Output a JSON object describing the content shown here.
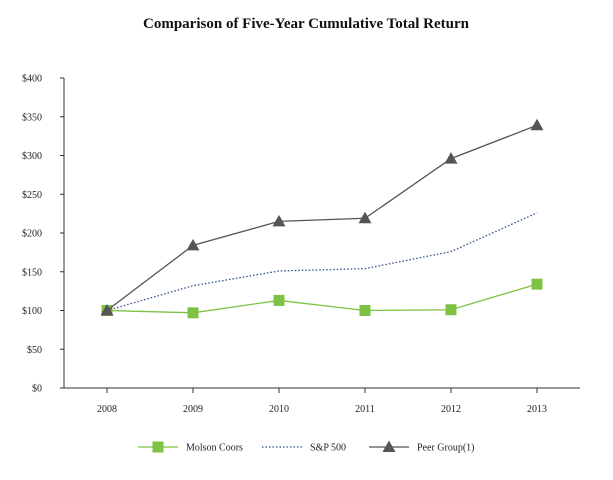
{
  "chart_data": {
    "type": "line",
    "title": "Comparison of Five-Year Cumulative Total Return",
    "categories": [
      "2008",
      "2009",
      "2010",
      "2011",
      "2012",
      "2013"
    ],
    "y_tick_labels": [
      "$0",
      "$50",
      "$100",
      "$150",
      "$200",
      "$250",
      "$300",
      "$350",
      "$400"
    ],
    "ylim": [
      0,
      400
    ],
    "grid": false,
    "legend_position": "bottom",
    "series": [
      {
        "name": "Molson Coors",
        "values": [
          100,
          97,
          113,
          100,
          101,
          134
        ],
        "color": "#7dc242",
        "line_style": "solid",
        "marker": "square"
      },
      {
        "name": "S&P 500",
        "values": [
          100,
          132,
          151,
          154,
          176,
          226
        ],
        "color": "#2f4f8f",
        "line_style": "dotted",
        "marker": "none"
      },
      {
        "name": "Peer Group(1)",
        "values": [
          100,
          184,
          215,
          219,
          296,
          339
        ],
        "color": "#555555",
        "line_style": "solid",
        "marker": "triangle"
      }
    ]
  }
}
